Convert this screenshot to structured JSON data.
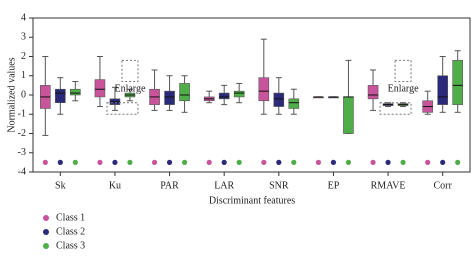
{
  "chart_data": {
    "type": "box",
    "x_label": "Discriminant features",
    "y_label": "Normalized values",
    "categories": [
      "Sk",
      "Ku",
      "PAR",
      "LAR",
      "SNR",
      "EP",
      "RMAVE",
      "Corr"
    ],
    "ylim": [
      -4,
      4
    ],
    "yticks": [
      -4,
      -3,
      -2,
      -1,
      0,
      1,
      2,
      3,
      4
    ],
    "annotations": [
      "Enlarge",
      "Enlarge"
    ],
    "legend": "bottom-left",
    "series": [
      {
        "name": "Class 1",
        "color": "#c8559b",
        "whisker_low": [
          -2.1,
          -0.6,
          -0.8,
          -0.4,
          -1.0,
          -0.1,
          -0.8,
          -1.0
        ],
        "q1": [
          -0.7,
          -0.1,
          -0.5,
          -0.3,
          -0.3,
          -0.1,
          -0.2,
          -0.9
        ],
        "median": [
          -0.1,
          0.3,
          -0.1,
          -0.2,
          0.2,
          -0.1,
          0.0,
          -0.6
        ],
        "q3": [
          0.5,
          0.8,
          0.3,
          -0.1,
          0.9,
          -0.1,
          0.5,
          -0.3
        ],
        "whisker_high": [
          2.0,
          2.0,
          1.3,
          0.2,
          2.9,
          -0.1,
          1.3,
          0.2
        ],
        "markers": [
          -3.5,
          -3.5,
          -3.5,
          -3.5,
          -3.5,
          -3.5,
          -3.5,
          -3.5
        ]
      },
      {
        "name": "Class 2",
        "color": "#2b2a7a",
        "whisker_low": [
          -1.0,
          -0.8,
          -0.8,
          -0.5,
          -1.0,
          -0.1,
          -0.6,
          -0.9
        ],
        "q1": [
          -0.4,
          -0.5,
          -0.5,
          -0.2,
          -0.6,
          -0.1,
          -0.55,
          -0.5
        ],
        "median": [
          0.1,
          -0.35,
          -0.1,
          -0.1,
          -0.2,
          -0.1,
          -0.5,
          -0.1
        ],
        "q3": [
          0.3,
          -0.2,
          0.2,
          0.1,
          0.1,
          -0.1,
          -0.45,
          1.0
        ],
        "whisker_high": [
          0.9,
          0.4,
          1.0,
          0.5,
          0.9,
          -0.1,
          -0.4,
          2.0
        ],
        "markers": [
          -3.5,
          -3.5,
          -3.5,
          -3.5,
          -3.5,
          -3.5,
          -3.5,
          -3.5
        ]
      },
      {
        "name": "Class 3",
        "color": "#4fae48",
        "whisker_low": [
          -0.3,
          -0.3,
          -0.9,
          -0.4,
          -1.0,
          -2.0,
          -0.6,
          -0.9
        ],
        "q1": [
          0.0,
          -0.1,
          -0.3,
          -0.1,
          -0.7,
          -2.0,
          -0.55,
          -0.5
        ],
        "median": [
          0.1,
          0.0,
          0.0,
          0.1,
          -0.4,
          -0.1,
          -0.5,
          0.5
        ],
        "q3": [
          0.3,
          0.1,
          0.6,
          0.2,
          -0.2,
          -0.1,
          -0.45,
          1.8
        ],
        "whisker_high": [
          0.7,
          0.3,
          1.0,
          0.6,
          0.3,
          1.8,
          -0.4,
          2.3
        ],
        "markers": [
          -3.5,
          -3.5,
          -3.5,
          -3.5,
          -3.5,
          -3.5,
          -3.5,
          -3.5
        ]
      }
    ]
  }
}
